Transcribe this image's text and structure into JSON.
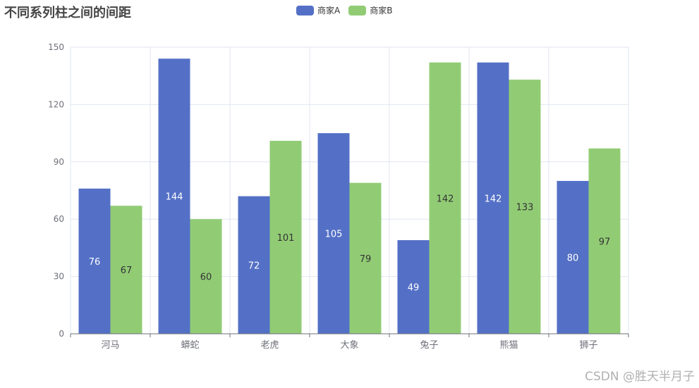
{
  "chart_data": {
    "type": "bar",
    "title": "不同系列柱之间的间距",
    "categories": [
      "河马",
      "蟒蛇",
      "老虎",
      "大象",
      "兔子",
      "熊猫",
      "狮子"
    ],
    "series": [
      {
        "name": "商家A",
        "color": "#5470c6",
        "values": [
          76,
          144,
          72,
          105,
          49,
          142,
          80
        ]
      },
      {
        "name": "商家B",
        "color": "#91cc75",
        "values": [
          67,
          60,
          101,
          79,
          142,
          133,
          97
        ]
      }
    ],
    "ylim": [
      0,
      150
    ],
    "yticks": [
      "0",
      "30",
      "60",
      "90",
      "120",
      "150"
    ],
    "grid": true,
    "legend_position": "top-center",
    "data_labels": "inside"
  },
  "watermark": "CSDN @胜天半月子"
}
